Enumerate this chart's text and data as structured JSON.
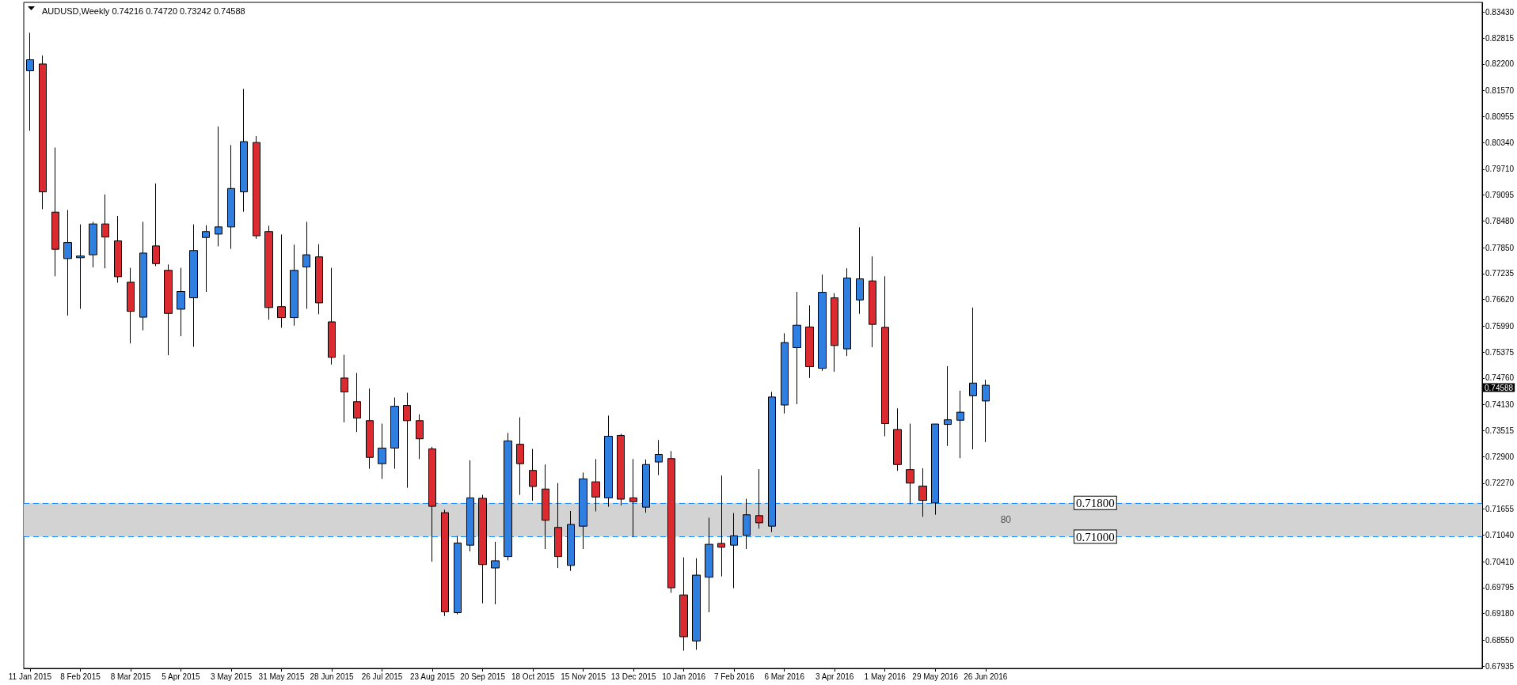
{
  "chart_data": {
    "type": "candlestick",
    "title": "AUDUSD,Weekly 0.74216 0.74720 0.73242 0.74588",
    "categories": [
      "11 Jan 2015",
      null,
      null,
      null,
      "8 Feb 2015",
      null,
      null,
      null,
      "8 Mar 2015",
      null,
      null,
      null,
      "5 Apr 2015",
      null,
      null,
      null,
      "3 May 2015",
      null,
      null,
      null,
      "31 May 2015",
      null,
      null,
      null,
      "28 Jun 2015",
      null,
      null,
      null,
      "26 Jul 2015",
      null,
      null,
      null,
      "23 Aug 2015",
      null,
      null,
      null,
      "20 Sep 2015",
      null,
      null,
      null,
      "18 Oct 2015",
      null,
      null,
      null,
      "15 Nov 2015",
      null,
      null,
      null,
      "13 Dec 2015",
      null,
      null,
      null,
      "10 Jan 2016",
      null,
      null,
      null,
      "7 Feb 2016",
      null,
      null,
      null,
      "6 Mar 2016",
      null,
      null,
      null,
      "3 Apr 2016",
      null,
      null,
      null,
      "1 May 2016",
      null,
      null,
      null,
      "29 May 2016",
      null,
      null,
      null,
      "26 Jun 2016",
      null,
      null,
      null,
      null,
      null,
      null,
      null,
      null,
      null,
      null,
      null,
      null,
      null,
      null,
      null,
      null,
      null,
      null,
      null,
      null,
      null,
      null,
      null,
      null,
      null,
      null,
      null,
      null,
      null,
      null,
      null,
      null,
      null,
      null,
      null,
      null,
      null,
      null,
      null
    ],
    "ohlc": [
      [
        0.8204,
        0.8294,
        0.8062,
        0.823
      ],
      [
        0.822,
        0.824,
        0.7876,
        0.7917
      ],
      [
        0.7869,
        0.8022,
        0.7717,
        0.7781
      ],
      [
        0.7759,
        0.7874,
        0.7624,
        0.7797
      ],
      [
        0.7761,
        0.784,
        0.764,
        0.7765
      ],
      [
        0.7768,
        0.7846,
        0.7738,
        0.7841
      ],
      [
        0.7841,
        0.7911,
        0.7736,
        0.781
      ],
      [
        0.7801,
        0.786,
        0.7702,
        0.7716
      ],
      [
        0.7703,
        0.7737,
        0.7558,
        0.7634
      ],
      [
        0.762,
        0.7846,
        0.7589,
        0.7772
      ],
      [
        0.7789,
        0.7937,
        0.7741,
        0.7747
      ],
      [
        0.7731,
        0.7745,
        0.753,
        0.7629
      ],
      [
        0.7639,
        0.7737,
        0.7575,
        0.7681
      ],
      [
        0.7666,
        0.784,
        0.755,
        0.7778
      ],
      [
        0.7809,
        0.7838,
        0.768,
        0.7823
      ],
      [
        0.7817,
        0.8072,
        0.7788,
        0.7834
      ],
      [
        0.7834,
        0.8028,
        0.7782,
        0.7925
      ],
      [
        0.7917,
        0.8161,
        0.787,
        0.8036
      ],
      [
        0.8034,
        0.8049,
        0.7806,
        0.7813
      ],
      [
        0.7823,
        0.7837,
        0.7614,
        0.7643
      ],
      [
        0.7645,
        0.7816,
        0.7595,
        0.7619
      ],
      [
        0.7619,
        0.7792,
        0.76,
        0.7731
      ],
      [
        0.7739,
        0.7846,
        0.764,
        0.7768
      ],
      [
        0.7763,
        0.7793,
        0.7627,
        0.7654
      ],
      [
        0.7609,
        0.7737,
        0.7508,
        0.7525
      ],
      [
        0.7476,
        0.7531,
        0.7371,
        0.7443
      ],
      [
        0.742,
        0.7488,
        0.7348,
        0.7381
      ],
      [
        0.7375,
        0.7451,
        0.7261,
        0.7288
      ],
      [
        0.7273,
        0.7368,
        0.7237,
        0.731
      ],
      [
        0.731,
        0.743,
        0.7261,
        0.7409
      ],
      [
        0.7411,
        0.7441,
        0.7216,
        0.7375
      ],
      [
        0.7375,
        0.739,
        0.7284,
        0.7332
      ],
      [
        0.7308,
        0.7313,
        0.7041,
        0.7172
      ],
      [
        0.7157,
        0.7164,
        0.6912,
        0.6922
      ],
      [
        0.692,
        0.7102,
        0.6916,
        0.7085
      ],
      [
        0.708,
        0.7281,
        0.7065,
        0.7192
      ],
      [
        0.7191,
        0.7199,
        0.6942,
        0.7034
      ],
      [
        0.7026,
        0.7088,
        0.694,
        0.7043
      ],
      [
        0.7053,
        0.7346,
        0.7044,
        0.7327
      ],
      [
        0.7319,
        0.7383,
        0.7199,
        0.7273
      ],
      [
        0.7257,
        0.7308,
        0.7185,
        0.7219
      ],
      [
        0.7213,
        0.7271,
        0.7071,
        0.7139
      ],
      [
        0.7122,
        0.7227,
        0.7026,
        0.7053
      ],
      [
        0.7032,
        0.7161,
        0.7019,
        0.7129
      ],
      [
        0.7125,
        0.7252,
        0.7071,
        0.7237
      ],
      [
        0.723,
        0.7284,
        0.716,
        0.7194
      ],
      [
        0.7192,
        0.7387,
        0.7171,
        0.7338
      ],
      [
        0.734,
        0.7344,
        0.7174,
        0.7189
      ],
      [
        0.7192,
        0.7284,
        0.7099,
        0.7183
      ],
      [
        0.717,
        0.7283,
        0.7157,
        0.7271
      ],
      [
        0.7277,
        0.7329,
        0.7246,
        0.7295
      ],
      [
        0.7285,
        0.7303,
        0.6967,
        0.6979
      ],
      [
        0.6962,
        0.7051,
        0.683,
        0.6863
      ],
      [
        0.6853,
        0.7049,
        0.6832,
        0.7009
      ],
      [
        0.7004,
        0.7145,
        0.6921,
        0.7082
      ],
      [
        0.7084,
        0.7245,
        0.7006,
        0.7075
      ],
      [
        0.708,
        0.7156,
        0.6978,
        0.7102
      ],
      [
        0.7103,
        0.719,
        0.7071,
        0.7152
      ],
      [
        0.715,
        0.726,
        0.7119,
        0.7133
      ],
      [
        0.7125,
        0.7443,
        0.7111,
        0.7431
      ],
      [
        0.7412,
        0.7582,
        0.7392,
        0.756
      ],
      [
        0.7548,
        0.768,
        0.7414,
        0.7601
      ],
      [
        0.7597,
        0.7648,
        0.7476,
        0.7503
      ],
      [
        0.7499,
        0.7721,
        0.7493,
        0.7679
      ],
      [
        0.7666,
        0.7677,
        0.7491,
        0.7553
      ],
      [
        0.7545,
        0.7736,
        0.7528,
        0.7713
      ],
      [
        0.7661,
        0.7833,
        0.7628,
        0.7711
      ],
      [
        0.7706,
        0.7764,
        0.7549,
        0.7603
      ],
      [
        0.7596,
        0.7717,
        0.7338,
        0.7368
      ],
      [
        0.7354,
        0.7404,
        0.7256,
        0.7271
      ],
      [
        0.7259,
        0.7368,
        0.7177,
        0.7227
      ],
      [
        0.722,
        0.7262,
        0.7147,
        0.7186
      ],
      [
        0.718,
        0.7367,
        0.7152,
        0.7367
      ],
      [
        0.7366,
        0.7504,
        0.7315,
        0.7377
      ],
      [
        0.7376,
        0.7446,
        0.7286,
        0.7395
      ],
      [
        0.7434,
        0.7643,
        0.7307,
        0.7464
      ],
      [
        0.74216,
        0.7472,
        0.73242,
        0.74588
      ],
      null,
      null,
      null,
      null,
      null,
      null,
      null,
      null,
      null,
      null,
      null,
      null,
      null,
      null,
      null,
      null,
      null,
      null,
      null,
      null,
      null,
      null,
      null,
      null,
      null,
      null,
      null,
      null,
      null,
      null,
      null,
      null,
      null,
      null,
      null,
      null,
      null,
      null,
      null
    ],
    "colors": [
      "#2f7fe0",
      "#dc2a31",
      "#dc2a31",
      "#2f7fe0",
      "#2f7fe0",
      "#2f7fe0",
      "#dc2a31",
      "#dc2a31",
      "#dc2a31",
      "#2f7fe0",
      "#dc2a31",
      "#dc2a31",
      "#2f7fe0",
      "#2f7fe0",
      "#2f7fe0",
      "#2f7fe0",
      "#2f7fe0",
      "#2f7fe0",
      "#dc2a31",
      "#dc2a31",
      "#dc2a31",
      "#2f7fe0",
      "#2f7fe0",
      "#dc2a31",
      "#dc2a31",
      "#dc2a31",
      "#dc2a31",
      "#dc2a31",
      "#2f7fe0",
      "#2f7fe0",
      "#dc2a31",
      "#dc2a31",
      "#dc2a31",
      "#dc2a31",
      "#2f7fe0",
      "#2f7fe0",
      "#dc2a31",
      "#2f7fe0",
      "#2f7fe0",
      "#dc2a31",
      "#dc2a31",
      "#dc2a31",
      "#dc2a31",
      "#2f7fe0",
      "#2f7fe0",
      "#dc2a31",
      "#2f7fe0",
      "#dc2a31",
      "#dc2a31",
      "#2f7fe0",
      "#2f7fe0",
      "#dc2a31",
      "#dc2a31",
      "#2f7fe0",
      "#2f7fe0",
      "#dc2a31",
      "#2f7fe0",
      "#2f7fe0",
      "#dc2a31",
      "#2f7fe0",
      "#2f7fe0",
      "#2f7fe0",
      "#dc2a31",
      "#2f7fe0",
      "#dc2a31",
      "#2f7fe0",
      "#2f7fe0",
      "#dc2a31",
      "#dc2a31",
      "#dc2a31",
      "#dc2a31",
      "#dc2a31",
      "#2f7fe0",
      "#2f7fe0",
      "#2f7fe0",
      "#2f7fe0",
      "#2f7fe0",
      null,
      null,
      null,
      null,
      null,
      null,
      null,
      null,
      null,
      null,
      null,
      null,
      null,
      null,
      null,
      null,
      null,
      null,
      null,
      null,
      null,
      null,
      null,
      null,
      null,
      null,
      null,
      null,
      null,
      null,
      null,
      null,
      null,
      null,
      null,
      null,
      null,
      null,
      null
    ],
    "ylim": [
      0.6788,
      0.8366
    ],
    "yticks": [
      {
        "value": 0.8343,
        "label": "0.83430"
      },
      {
        "value": 0.82815,
        "label": "0.82815"
      },
      {
        "value": 0.822,
        "label": "0.82200"
      },
      {
        "value": 0.8157,
        "label": "0.81570"
      },
      {
        "value": 0.80955,
        "label": "0.80955"
      },
      {
        "value": 0.8034,
        "label": "0.80340"
      },
      {
        "value": 0.7971,
        "label": "0.79710"
      },
      {
        "value": 0.79095,
        "label": "0.79095"
      },
      {
        "value": 0.7848,
        "label": "0.78480"
      },
      {
        "value": 0.7785,
        "label": "0.77850"
      },
      {
        "value": 0.77235,
        "label": "0.77235"
      },
      {
        "value": 0.7662,
        "label": "0.76620"
      },
      {
        "value": 0.7599,
        "label": "0.75990"
      },
      {
        "value": 0.75375,
        "label": "0.75375"
      },
      {
        "value": 0.7476,
        "label": "0.74760"
      },
      {
        "value": 0.7413,
        "label": "0.74130"
      },
      {
        "value": 0.73515,
        "label": "0.73515"
      },
      {
        "value": 0.729,
        "label": "0.72900"
      },
      {
        "value": 0.7227,
        "label": "0.72270"
      },
      {
        "value": 0.71655,
        "label": "0.71655"
      },
      {
        "value": 0.7104,
        "label": "0.71040"
      },
      {
        "value": 0.7041,
        "label": "0.70410"
      },
      {
        "value": 0.69795,
        "label": "0.69795"
      },
      {
        "value": 0.6918,
        "label": "0.69180"
      },
      {
        "value": 0.6855,
        "label": "0.68550"
      },
      {
        "value": 0.67935,
        "label": "0.67935"
      }
    ],
    "ref_lines": [
      {
        "axis": "y",
        "value": 0.718,
        "label": "0.71800",
        "color": "#1e90ff",
        "line_style": "dashed"
      },
      {
        "axis": "y",
        "value": 0.71,
        "label": "0.71000",
        "color": "#1e90ff",
        "line_style": "dashed"
      }
    ],
    "bands": [
      {
        "axis": "y",
        "from": 0.71,
        "to": 0.718,
        "label": "80",
        "color": "#d3d3d3"
      }
    ],
    "annotations": [
      "0.74588"
    ]
  }
}
